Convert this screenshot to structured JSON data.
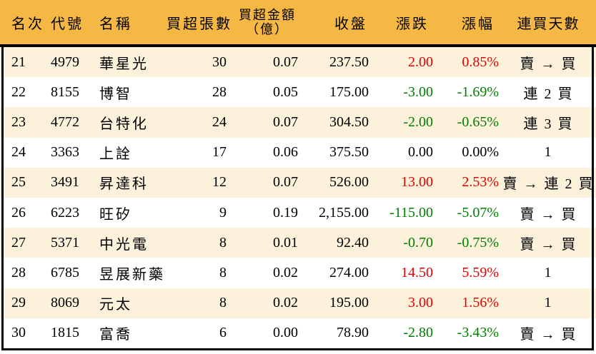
{
  "chart_data": {
    "type": "table",
    "columns": [
      {
        "key": "rank",
        "label": "名次"
      },
      {
        "key": "code",
        "label": "代號"
      },
      {
        "key": "name",
        "label": "名稱"
      },
      {
        "key": "volume",
        "label": "買超張數"
      },
      {
        "key": "amount",
        "label": "買超金額",
        "label2": "（億）"
      },
      {
        "key": "close",
        "label": "收盤"
      },
      {
        "key": "change",
        "label": "漲跌"
      },
      {
        "key": "pct",
        "label": "漲幅"
      },
      {
        "key": "days",
        "label": "連買天數"
      }
    ],
    "rows": [
      {
        "rank": "21",
        "code": "4979",
        "name": "華星光",
        "volume": "30",
        "amount": "0.07",
        "close": "237.50",
        "change": "2.00",
        "pct": "0.85%",
        "days": "賣 → 買",
        "trend": "up"
      },
      {
        "rank": "22",
        "code": "8155",
        "name": "博智",
        "volume": "28",
        "amount": "0.05",
        "close": "175.00",
        "change": "-3.00",
        "pct": "-1.69%",
        "days": "連 2 買",
        "trend": "down"
      },
      {
        "rank": "23",
        "code": "4772",
        "name": "台特化",
        "volume": "24",
        "amount": "0.07",
        "close": "304.50",
        "change": "-2.00",
        "pct": "-0.65%",
        "days": "連 3 買",
        "trend": "down"
      },
      {
        "rank": "24",
        "code": "3363",
        "name": "上詮",
        "volume": "17",
        "amount": "0.06",
        "close": "375.50",
        "change": "0.00",
        "pct": "0.00%",
        "days": "1",
        "trend": "flat"
      },
      {
        "rank": "25",
        "code": "3491",
        "name": "昇達科",
        "volume": "12",
        "amount": "0.07",
        "close": "526.00",
        "change": "13.00",
        "pct": "2.53%",
        "days": "賣 → 連 2 買",
        "trend": "up"
      },
      {
        "rank": "26",
        "code": "6223",
        "name": "旺矽",
        "volume": "9",
        "amount": "0.19",
        "close": "2,155.00",
        "change": "-115.00",
        "pct": "-5.07%",
        "days": "賣 → 買",
        "trend": "down"
      },
      {
        "rank": "27",
        "code": "5371",
        "name": "中光電",
        "volume": "8",
        "amount": "0.01",
        "close": "92.40",
        "change": "-0.70",
        "pct": "-0.75%",
        "days": "賣 → 買",
        "trend": "down"
      },
      {
        "rank": "28",
        "code": "6785",
        "name": "昱展新藥",
        "volume": "8",
        "amount": "0.02",
        "close": "274.00",
        "change": "14.50",
        "pct": "5.59%",
        "days": "1",
        "trend": "up"
      },
      {
        "rank": "29",
        "code": "8069",
        "name": "元太",
        "volume": "8",
        "amount": "0.02",
        "close": "195.00",
        "change": "3.00",
        "pct": "1.56%",
        "days": "1",
        "trend": "up"
      },
      {
        "rank": "30",
        "code": "1815",
        "name": "富喬",
        "volume": "6",
        "amount": "0.00",
        "close": "78.90",
        "change": "-2.80",
        "pct": "-3.43%",
        "days": "賣 → 買",
        "trend": "down"
      }
    ]
  },
  "colors": {
    "header_bg": "#F6B845",
    "row_alt_bg": "#FCF2DB",
    "up": "#E60000",
    "down": "#007E00",
    "text": "#000000",
    "border": "#000000"
  }
}
